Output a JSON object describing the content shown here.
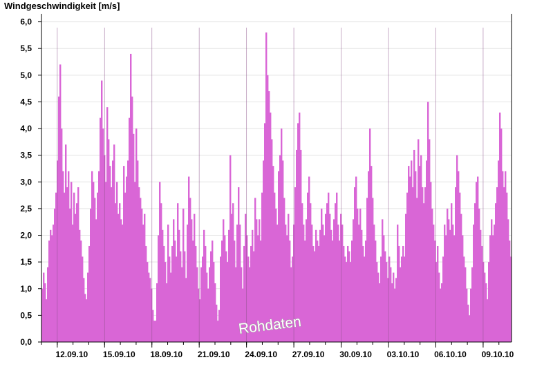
{
  "chart_data": {
    "type": "bar",
    "title": "Windgeschwindigkeit [m/s]",
    "ylabel": "",
    "xlabel": "",
    "ylim": [
      0,
      6.15
    ],
    "y_ticks": [
      "0,0",
      "0,5",
      "1,0",
      "1,5",
      "2,0",
      "2,5",
      "3,0",
      "3,5",
      "4,0",
      "4,5",
      "5,0",
      "5,5",
      "6,0"
    ],
    "x_tick_labels": [
      "12.09.10",
      "15.09.10",
      "18.09.10",
      "21.09.10",
      "24.09.10",
      "27.09.10",
      "30.09.10",
      "03.10.10",
      "06.10.10",
      "09.10.10"
    ],
    "x_range_days": [
      0,
      29.8
    ],
    "x_tick_days": [
      1,
      4,
      7,
      10,
      13,
      16,
      19,
      22,
      25,
      28
    ],
    "series": [
      {
        "values": [
          1.0,
          1.3,
          1.1,
          0.8,
          1.4,
          1.9,
          2.1,
          2.0,
          2.2,
          2.5,
          2.8,
          3.4,
          4.6,
          5.2,
          4.0,
          3.2,
          2.8,
          3.7,
          2.9,
          3.2,
          2.5,
          3.0,
          2.2,
          2.8,
          2.4,
          2.6,
          2.9,
          2.1,
          1.9,
          1.6,
          1.2,
          0.9,
          0.8,
          1.3,
          1.8,
          2.5,
          3.2,
          3.0,
          2.7,
          2.3,
          2.8,
          3.2,
          4.2,
          4.9,
          4.0,
          3.5,
          3.0,
          4.4,
          3.8,
          3.3,
          2.9,
          3.4,
          3.7,
          2.6,
          3.0,
          2.4,
          2.6,
          2.3,
          2.2,
          3.3,
          2.8,
          3.1,
          3.4,
          4.2,
          5.4,
          4.6,
          3.9,
          3.0,
          4.0,
          3.4,
          2.9,
          2.7,
          2.5,
          2.2,
          2.4,
          1.8,
          1.5,
          1.3,
          1.2,
          1.0,
          0.6,
          0.4,
          0.4,
          1.1,
          2.0,
          3.0,
          2.6,
          2.1,
          1.8,
          1.5,
          1.1,
          2.2,
          1.6,
          1.3,
          1.8,
          2.3,
          1.9,
          1.6,
          2.6,
          2.1,
          1.7,
          1.4,
          2.5,
          1.7,
          1.2,
          2.2,
          3.1,
          2.7,
          2.3,
          1.9,
          2.4,
          1.8,
          1.4,
          1.0,
          0.8,
          1.4,
          1.6,
          2.1,
          1.8,
          1.3,
          1.0,
          1.4,
          1.7,
          1.9,
          1.5,
          1.1,
          0.7,
          0.4,
          0.6,
          1.6,
          1.9,
          2.3,
          2.0,
          1.7,
          1.5,
          2.1,
          3.5,
          2.4,
          2.6,
          1.9,
          1.4,
          2.2,
          2.9,
          2.2,
          1.4,
          1.0,
          1.8,
          2.4,
          2.0,
          1.6,
          1.4,
          1.8,
          2.1,
          1.7,
          2.7,
          2.3,
          2.0,
          2.3,
          1.9,
          2.8,
          3.4,
          4.1,
          5.8,
          5.0,
          4.7,
          4.3,
          3.8,
          3.3,
          2.8,
          2.5,
          2.2,
          3.2,
          3.5,
          4.0,
          3.4,
          2.7,
          2.2,
          2.0,
          2.4,
          1.9,
          1.4,
          1.6,
          2.2,
          2.9,
          3.6,
          4.1,
          4.3,
          3.6,
          2.6,
          2.2,
          1.9,
          2.3,
          2.8,
          3.1,
          2.6,
          2.2,
          1.8,
          1.7,
          2.1,
          1.9,
          1.8,
          2.1,
          2.5,
          2.2,
          2.0,
          2.4,
          2.6,
          2.8,
          2.4,
          2.1,
          1.9,
          2.3,
          2.6,
          2.8,
          2.2,
          1.9,
          2.4,
          2.2,
          1.8,
          1.6,
          1.5,
          1.8,
          1.7,
          1.5,
          1.9,
          2.3,
          2.9,
          3.1,
          2.5,
          2.2,
          2.5,
          2.1,
          1.8,
          1.6,
          1.9,
          2.7,
          3.2,
          4.0,
          3.3,
          2.7,
          2.2,
          1.9,
          1.5,
          1.3,
          1.1,
          1.6,
          2.3,
          2.0,
          1.7,
          1.5,
          1.2,
          1.6,
          1.4,
          1.1,
          1.3,
          1.0,
          1.2,
          2.2,
          1.8,
          1.4,
          1.6,
          1.8,
          1.6,
          2.4,
          2.8,
          3.3,
          3.1,
          3.4,
          2.9,
          3.6,
          3.2,
          2.7,
          3.8,
          3.3,
          3.5,
          2.9,
          2.6,
          2.9,
          3.4,
          4.5,
          3.8,
          3.0,
          2.5,
          2.2,
          1.9,
          1.5,
          1.8,
          1.3,
          1.0,
          1.1,
          1.6,
          2.2,
          2.0,
          2.5,
          2.3,
          2.1,
          2.6,
          2.2,
          2.0,
          2.9,
          3.5,
          3.2,
          2.8,
          2.4,
          2.0,
          1.6,
          1.4,
          1.0,
          0.7,
          0.5,
          1.0,
          1.4,
          2.2,
          2.6,
          3.0,
          3.1,
          2.5,
          2.1,
          1.8,
          1.5,
          1.3,
          1.1,
          0.8,
          1.5,
          2.0,
          2.3,
          2.0,
          2.2,
          2.6,
          2.9,
          3.4,
          4.3,
          4.0,
          3.2,
          2.9,
          3.2,
          2.8,
          2.3,
          1.9,
          1.6
        ]
      }
    ],
    "bar_color": "#d966d6",
    "grid_color": "#e3e3e3",
    "daily_lines_color": "#8a5088"
  },
  "watermark": "Rohdaten"
}
